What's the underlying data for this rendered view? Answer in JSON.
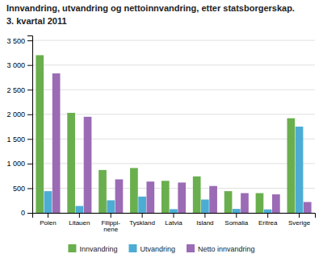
{
  "chart_data": {
    "type": "bar",
    "title": "Innvandring, utvandring og nettoinnvandring, etter statsborgerskap.",
    "subtitle": "3. kvartal 2011",
    "categories": [
      "Polen",
      "Litauen",
      "Filippi-\nnene",
      "Tyskland",
      "Latvia",
      "Island",
      "Somalia",
      "Eritrea",
      "Sverige"
    ],
    "series": [
      {
        "name": "Innvandring",
        "color": "#6aaf4e",
        "values": [
          3200,
          2030,
          870,
          910,
          650,
          740,
          440,
          400,
          1920
        ]
      },
      {
        "name": "Utvandring",
        "color": "#4dacd4",
        "values": [
          440,
          140,
          255,
          330,
          75,
          270,
          80,
          70,
          1750
        ]
      },
      {
        "name": "Netto innvandring",
        "color": "#9b6bb5",
        "values": [
          2830,
          1950,
          680,
          635,
          615,
          545,
          400,
          375,
          220
        ]
      }
    ],
    "ylim": [
      0,
      3600
    ],
    "yticks": [
      0,
      500,
      {
        "value": 1000,
        "label": "1 000"
      },
      {
        "value": 1500,
        "label": "1 500"
      },
      {
        "value": 2000,
        "label": "2 000"
      },
      {
        "value": 2500,
        "label": "2 500"
      },
      {
        "value": 3000,
        "label": "3 000"
      },
      {
        "value": 3500,
        "label": "3 500"
      }
    ],
    "grid": true,
    "legend": "bottom"
  }
}
